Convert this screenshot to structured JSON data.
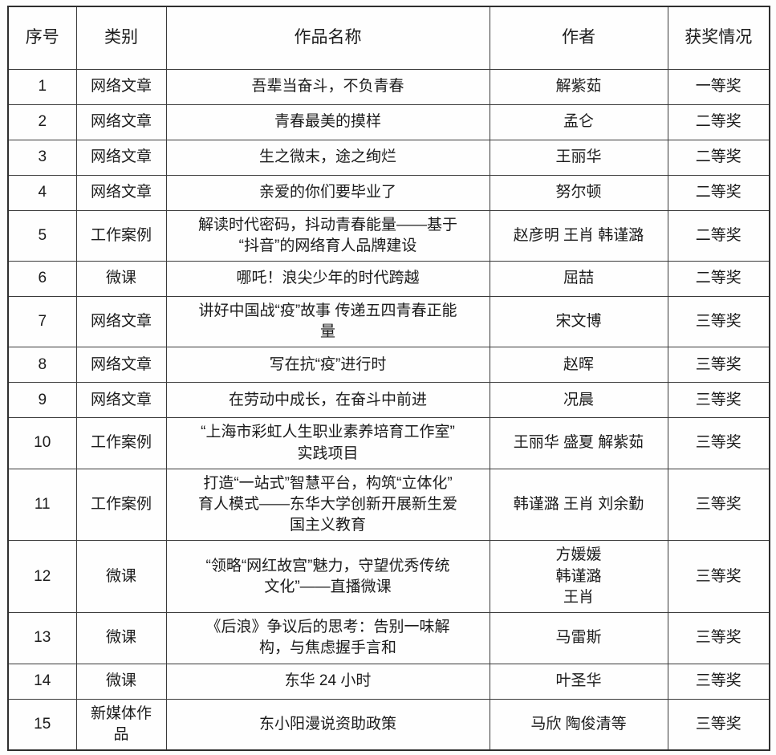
{
  "colors": {
    "page_bg": "#fdfdfd",
    "cell_bg": "#fefefe",
    "border": "#3a3a3a",
    "text": "#1b1b1b"
  },
  "table": {
    "headers": [
      "序号",
      "类别",
      "作品名称",
      "作者",
      "获奖情况"
    ],
    "rows": [
      {
        "no": "1",
        "category": "网络文章",
        "title": "吾辈当奋斗，不负青春",
        "authors": "解紫茹",
        "award": "一等奖"
      },
      {
        "no": "2",
        "category": "网络文章",
        "title": "青春最美的摸样",
        "authors": "孟仑",
        "award": "二等奖"
      },
      {
        "no": "3",
        "category": "网络文章",
        "title": "生之微末，途之绚烂",
        "authors": "王丽华",
        "award": "二等奖"
      },
      {
        "no": "4",
        "category": "网络文章",
        "title": "亲爱的你们要毕业了",
        "authors": "努尔顿",
        "award": "二等奖"
      },
      {
        "no": "5",
        "category": "工作案例",
        "title": "解读时代密码，抖动青春能量——基于\n“抖音”的网络育人品牌建设",
        "authors": "赵彦明 王肖 韩谨潞",
        "award": "二等奖"
      },
      {
        "no": "6",
        "category": "微课",
        "title": "哪吒！浪尖少年的时代跨越",
        "authors": "屈喆",
        "award": "二等奖"
      },
      {
        "no": "7",
        "category": "网络文章",
        "title": "讲好中国战“疫”故事 传递五四青春正能\n量",
        "authors": "宋文博",
        "award": "三等奖"
      },
      {
        "no": "8",
        "category": "网络文章",
        "title": "写在抗“疫”进行时",
        "authors": "赵晖",
        "award": "三等奖"
      },
      {
        "no": "9",
        "category": "网络文章",
        "title": "在劳动中成长，在奋斗中前进",
        "authors": "况晨",
        "award": "三等奖"
      },
      {
        "no": "10",
        "category": "工作案例",
        "title": "“上海市彩虹人生职业素养培育工作室”\n实践项目",
        "authors": "王丽华 盛夏 解紫茹",
        "award": "三等奖"
      },
      {
        "no": "11",
        "category": "工作案例",
        "title": "打造“一站式”智慧平台，构筑“立体化”\n育人模式——东华大学创新开展新生爱\n国主义教育",
        "authors": "韩谨潞 王肖 刘余勤",
        "award": "三等奖"
      },
      {
        "no": "12",
        "category": "微课",
        "title": "“领略“网红故宫”魅力，守望优秀传统\n文化”——直播微课",
        "authors": "方媛媛\n韩谨潞\n王肖",
        "award": "三等奖"
      },
      {
        "no": "13",
        "category": "微课",
        "title": "《后浪》争议后的思考：告别一味解\n构，与焦虑握手言和",
        "authors": "马雷斯",
        "award": "三等奖"
      },
      {
        "no": "14",
        "category": "微课",
        "title": "东华 24 小时",
        "authors": "叶圣华",
        "award": "三等奖"
      },
      {
        "no": "15",
        "category": "新媒体作\n品",
        "title": "东小阳漫说资助政策",
        "authors": "马欣 陶俊清等",
        "award": "三等奖"
      }
    ]
  }
}
